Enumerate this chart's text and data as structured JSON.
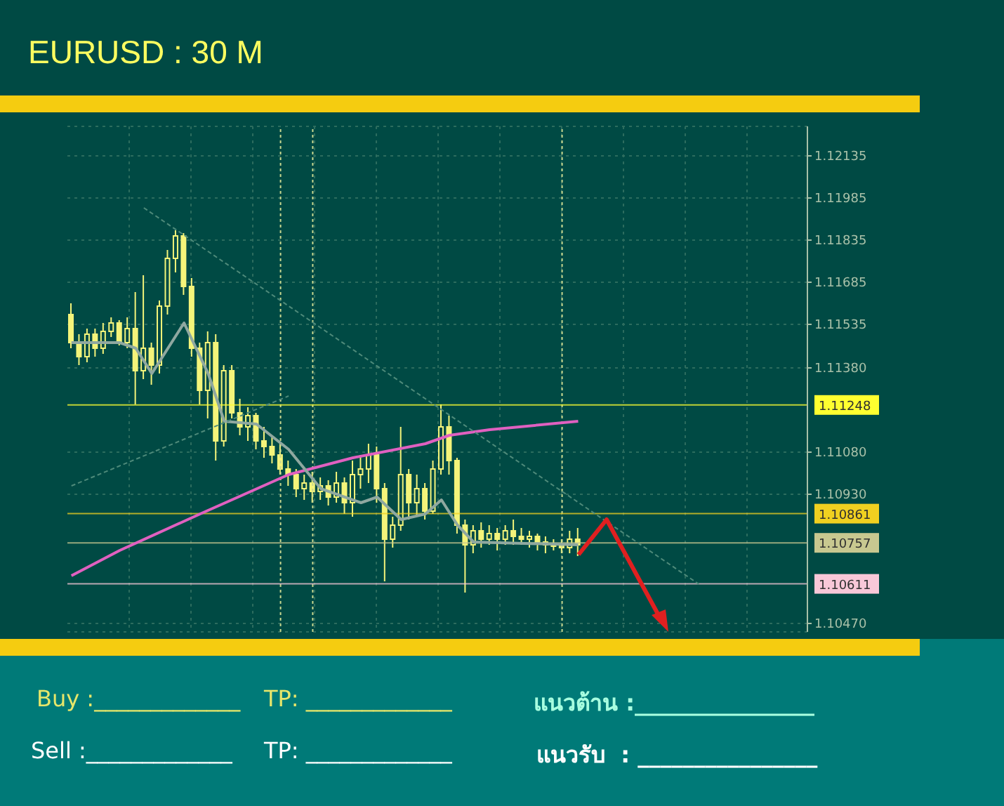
{
  "chart_data": {
    "type": "candlestick",
    "title": "EURUSD : 30 M",
    "categories": [
      null,
      null,
      null,
      null,
      null,
      null,
      null,
      null,
      null,
      null,
      null,
      null,
      null,
      null,
      null,
      null,
      null,
      null,
      null,
      null,
      null,
      null,
      null,
      null,
      null,
      null,
      null,
      null,
      null,
      null,
      null,
      null,
      null,
      null,
      null,
      null,
      null,
      null,
      null,
      null,
      null,
      null,
      null,
      null,
      null,
      null,
      null,
      null,
      null,
      null,
      null,
      null,
      null,
      null,
      null,
      null,
      null,
      null,
      null,
      null,
      null,
      null,
      null,
      null,
      null,
      null,
      null,
      null,
      null,
      null,
      null,
      null,
      null,
      null,
      null,
      null,
      null,
      null,
      null,
      null,
      null,
      null,
      null,
      null,
      null,
      null,
      null,
      null,
      null,
      null,
      null,
      null
    ],
    "series": [
      {
        "color": "#f4f47a",
        "ohlc": [
          [
            1.1157,
            1.1161,
            1.1145,
            1.1147
          ],
          [
            1.1147,
            1.115,
            1.1139,
            1.1142
          ],
          [
            1.1142,
            1.1152,
            1.114,
            1.115
          ],
          [
            1.115,
            1.1152,
            1.1142,
            1.1145
          ],
          [
            1.1145,
            1.1154,
            1.1143,
            1.1151
          ],
          [
            1.1151,
            1.1156,
            1.1149,
            1.1154
          ],
          [
            1.1154,
            1.1155,
            1.1146,
            1.1147
          ],
          [
            1.1147,
            1.1156,
            1.1145,
            1.1152
          ],
          [
            1.1152,
            1.1165,
            1.1125,
            1.1137
          ],
          [
            1.1137,
            1.1171,
            1.1134,
            1.1145
          ],
          [
            1.1145,
            1.1147,
            1.1132,
            1.1139
          ],
          [
            1.1139,
            1.1162,
            1.1136,
            1.116
          ],
          [
            1.116,
            1.118,
            1.1157,
            1.1177
          ],
          [
            1.1177,
            1.1187,
            1.1172,
            1.1185
          ],
          [
            1.1185,
            1.1186,
            1.1164,
            1.1167
          ],
          [
            1.1167,
            1.117,
            1.1142,
            1.1145
          ],
          [
            1.1145,
            1.1147,
            1.1125,
            1.113
          ],
          [
            1.113,
            1.1151,
            1.112,
            1.1147
          ],
          [
            1.1147,
            1.115,
            1.1105,
            1.1112
          ],
          [
            1.1112,
            1.1139,
            1.111,
            1.1137
          ],
          [
            1.1137,
            1.1139,
            1.112,
            1.1122
          ],
          [
            1.1122,
            1.1127,
            1.1114,
            1.1117
          ],
          [
            1.1117,
            1.1124,
            1.1112,
            1.1121
          ],
          [
            1.1121,
            1.1122,
            1.1109,
            1.1112
          ],
          [
            1.1112,
            1.1117,
            1.1106,
            1.111
          ],
          [
            1.111,
            1.1114,
            1.1104,
            1.1107
          ],
          [
            1.1107,
            1.1111,
            1.11,
            1.1102
          ],
          [
            1.1102,
            1.1105,
            1.1096,
            1.11
          ],
          [
            1.11,
            1.1102,
            1.1092,
            1.1095
          ],
          [
            1.1095,
            1.11,
            1.1091,
            1.1097
          ],
          [
            1.1097,
            1.1101,
            1.109,
            1.1094
          ],
          [
            1.1094,
            1.1099,
            1.1091,
            1.1096
          ],
          [
            1.1096,
            1.1098,
            1.1089,
            1.1092
          ],
          [
            1.1092,
            1.1101,
            1.109,
            1.1097
          ],
          [
            1.1097,
            1.1099,
            1.1086,
            1.109
          ],
          [
            1.109,
            1.1105,
            1.1085,
            1.11
          ],
          [
            1.11,
            1.1107,
            1.1095,
            1.1102
          ],
          [
            1.1102,
            1.1111,
            1.1097,
            1.1107
          ],
          [
            1.1107,
            1.111,
            1.109,
            1.1095
          ],
          [
            1.1095,
            1.1097,
            1.1062,
            1.1077
          ],
          [
            1.1077,
            1.1085,
            1.1074,
            1.1082
          ],
          [
            1.1082,
            1.1117,
            1.108,
            1.11
          ],
          [
            1.11,
            1.1102,
            1.1084,
            1.109
          ],
          [
            1.109,
            1.11,
            1.1085,
            1.1095
          ],
          [
            1.1095,
            1.1097,
            1.1084,
            1.1087
          ],
          [
            1.1087,
            1.1105,
            1.1086,
            1.1102
          ],
          [
            1.1102,
            1.1125,
            1.11,
            1.1117
          ],
          [
            1.1117,
            1.1121,
            1.11,
            1.1105
          ],
          [
            1.1105,
            1.1106,
            1.1079,
            1.1082
          ],
          [
            1.1082,
            1.1084,
            1.1058,
            1.1075
          ],
          [
            1.1075,
            1.1082,
            1.1072,
            1.108
          ],
          [
            1.108,
            1.1083,
            1.1074,
            1.1077
          ],
          [
            1.1077,
            1.1082,
            1.1075,
            1.1079
          ],
          [
            1.1079,
            1.1081,
            1.1073,
            1.1077
          ],
          [
            1.1077,
            1.1082,
            1.1075,
            1.108
          ],
          [
            1.108,
            1.1084,
            1.1075,
            1.1078
          ],
          [
            1.1078,
            1.1081,
            1.1075,
            1.1077
          ],
          [
            1.1077,
            1.108,
            1.1074,
            1.1078
          ],
          [
            1.1078,
            1.1079,
            1.1073,
            1.1076
          ],
          [
            1.1076,
            1.1078,
            1.1072,
            1.1075
          ],
          [
            1.1075,
            1.1077,
            1.1073,
            1.1075
          ],
          [
            1.1075,
            1.1077,
            1.1072,
            1.1074
          ],
          [
            1.1074,
            1.108,
            1.1072,
            1.1077
          ],
          [
            1.1077,
            1.1081,
            1.1071,
            1.1075
          ],
          null,
          null,
          null,
          null,
          null,
          null,
          null,
          null,
          null,
          null,
          null,
          null,
          null,
          null,
          null,
          null,
          null,
          null,
          null,
          null,
          null,
          null,
          null,
          null,
          null,
          null,
          null,
          null
        ]
      },
      {
        "type": "line",
        "color": "#e060c0",
        "values": [
          1.1064,
          null,
          null,
          null,
          null,
          null,
          1.1073,
          null,
          null,
          null,
          null,
          null,
          null,
          null,
          null,
          null,
          1.1086,
          null,
          null,
          null,
          null,
          null,
          null,
          null,
          null,
          null,
          null,
          1.11,
          null,
          null,
          null,
          null,
          null,
          null,
          null,
          1.1106,
          null,
          null,
          null,
          null,
          null,
          null,
          null,
          null,
          1.1111,
          null,
          null,
          1.1114,
          null,
          null,
          null,
          null,
          1.1116,
          null,
          null,
          null,
          null,
          null,
          null,
          null,
          null,
          null,
          null,
          1.1119,
          null,
          null,
          null,
          null,
          null,
          null,
          null,
          null,
          null,
          null,
          null,
          null,
          null,
          null,
          null,
          null,
          null,
          null,
          null,
          null,
          null,
          null,
          null,
          null,
          null,
          null,
          null,
          null
        ]
      },
      {
        "type": "line",
        "color": "#8fa8a0",
        "values": [
          1.1147,
          null,
          null,
          null,
          null,
          null,
          1.1147,
          null,
          1.1145,
          null,
          1.1136,
          null,
          null,
          null,
          1.1154,
          null,
          null,
          1.1136,
          null,
          1.1119,
          null,
          null,
          null,
          1.1118,
          null,
          null,
          null,
          1.1109,
          null,
          null,
          null,
          1.1095,
          null,
          null,
          null,
          null,
          1.109,
          null,
          1.1092,
          null,
          null,
          1.1084,
          null,
          null,
          1.1086,
          null,
          1.1091,
          null,
          1.1082,
          null,
          1.1076,
          null,
          null,
          null,
          null,
          null,
          null,
          null,
          null,
          null,
          null,
          null,
          null,
          1.1075,
          null,
          null,
          null,
          null,
          null,
          null,
          null,
          null,
          null,
          null,
          null,
          null,
          null,
          null,
          null,
          null,
          null,
          null,
          null,
          null,
          null,
          null,
          null,
          null,
          null,
          null,
          null,
          null
        ]
      },
      {
        "type": "line",
        "color": "#4e8a7a",
        "line_style": "dashed",
        "values": [
          null,
          null,
          null,
          null,
          null,
          null,
          null,
          null,
          null,
          1.1195,
          null,
          null,
          null,
          null,
          null,
          null,
          null,
          null,
          null,
          null,
          null,
          null,
          null,
          null,
          null,
          null,
          null,
          null,
          null,
          null,
          null,
          null,
          null,
          null,
          null,
          null,
          null,
          null,
          null,
          null,
          null,
          null,
          null,
          null,
          null,
          null,
          null,
          null,
          null,
          null,
          null,
          null,
          null,
          null,
          null,
          null,
          null,
          null,
          null,
          null,
          null,
          null,
          null,
          null,
          null,
          null,
          null,
          null,
          null,
          null,
          null,
          null,
          null,
          null,
          null,
          null,
          null,
          null,
          1.1061,
          null,
          null,
          null,
          null,
          null,
          null,
          null,
          null,
          null,
          null,
          null,
          null,
          null
        ]
      },
      {
        "type": "line",
        "color": "#4e8a7a",
        "line_style": "dashed",
        "values": [
          1.1096,
          null,
          null,
          null,
          null,
          null,
          null,
          null,
          null,
          null,
          null,
          null,
          null,
          null,
          null,
          null,
          null,
          null,
          null,
          null,
          null,
          null,
          null,
          null,
          null,
          null,
          null,
          1.1128,
          null,
          null,
          null,
          null,
          null,
          null,
          null,
          null,
          null,
          null,
          null,
          null,
          null,
          null,
          null,
          null,
          null,
          null,
          null,
          null,
          null,
          null,
          null,
          null,
          null,
          null,
          null,
          null,
          null,
          null,
          null,
          null,
          null,
          null,
          null,
          null,
          null,
          null,
          null,
          null,
          null,
          null,
          null,
          null,
          null,
          null,
          null,
          null,
          null,
          null,
          null,
          null,
          null,
          null,
          null,
          null,
          null,
          null,
          null,
          null,
          null,
          null,
          null,
          null
        ]
      }
    ],
    "ylim": [
      1.1044,
      1.1224
    ],
    "yticks": [
      1.12135,
      1.11985,
      1.11835,
      1.11685,
      1.11535,
      {
        "value": 1.1138,
        "label": "1.11380"
      },
      {
        "value": 1.1108,
        "label": "1.11080"
      },
      {
        "value": 1.1093,
        "label": "1.10930"
      },
      {
        "value": 1.1047,
        "label": "1.10470"
      }
    ],
    "ref_lines": [
      {
        "axis": "y",
        "value": 1.11248,
        "label": "1.11248",
        "color": "#ffff30"
      },
      {
        "axis": "y",
        "value": 1.10861,
        "label": "1.10861",
        "color": "#f0d020"
      },
      {
        "axis": "y",
        "value": 1.10757,
        "label": "1.10757",
        "color": "#c8c890"
      },
      {
        "axis": "y",
        "value": 1.10611,
        "label": "1.10611",
        "color": "#f8c8d8"
      }
    ],
    "grid": true,
    "legend": false,
    "tick_labels": "y",
    "marker": "none",
    "annotations": [
      "Buy :_____________",
      "TP: _____________",
      "แนวต้าน :________________",
      "Sell :_____________",
      "TP: _____________",
      "แนวรับ  : ________________"
    ]
  }
}
